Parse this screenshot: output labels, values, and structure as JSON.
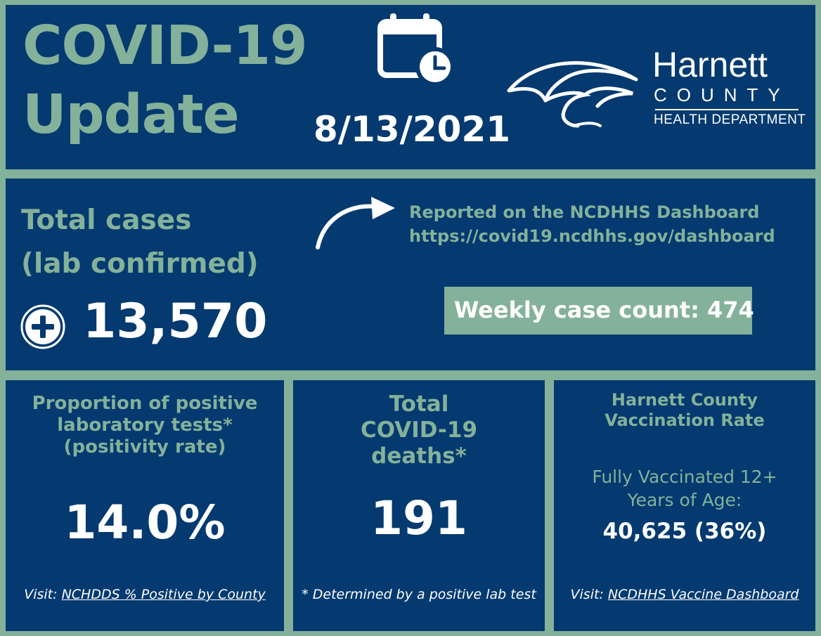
{
  "header": {
    "title_line1": "COVID-19",
    "title_line2": "Update",
    "date": "8/13/2021",
    "org_name": "Harnett",
    "org_sub": "COUNTY",
    "org_dept": "HEALTH DEPARTMENT"
  },
  "cases": {
    "label_line1": "Total cases",
    "label_line2": "(lab confirmed)",
    "value": "13,570",
    "reported_line1": "Reported on the NCDHHS Dashboard",
    "reported_line2": "https://covid19.ncdhhs.gov/dashboard",
    "weekly_label": "Weekly case count:",
    "weekly_value": "474"
  },
  "positivity": {
    "head_line1": "Proportion of positive",
    "head_line2": "laboratory tests*",
    "head_line3": "(positivity rate)",
    "value": "14.0%",
    "foot_prefix": "Visit:",
    "foot_link": "NCHDDS % Positive by County"
  },
  "deaths": {
    "head_line1": "Total",
    "head_line2": "COVID-19",
    "head_line3": "deaths*",
    "value": "191",
    "foot": "* Determined by a positive lab test"
  },
  "vaccination": {
    "head_line1": "Harnett County",
    "head_line2": "Vaccination Rate",
    "sub_line1": "Fully Vaccinated 12+",
    "sub_line2": "Years of Age:",
    "value": "40,625 (36%)",
    "foot_prefix": "Visit:",
    "foot_link": "NCDHHS Vaccine Dashboard"
  },
  "colors": {
    "panel": "#043a70",
    "accent": "#84b19a",
    "text": "#ffffff"
  },
  "icons": [
    "calendar-clock-icon",
    "eagle-logo-icon",
    "curved-arrow-icon",
    "plus-circle-icon"
  ]
}
